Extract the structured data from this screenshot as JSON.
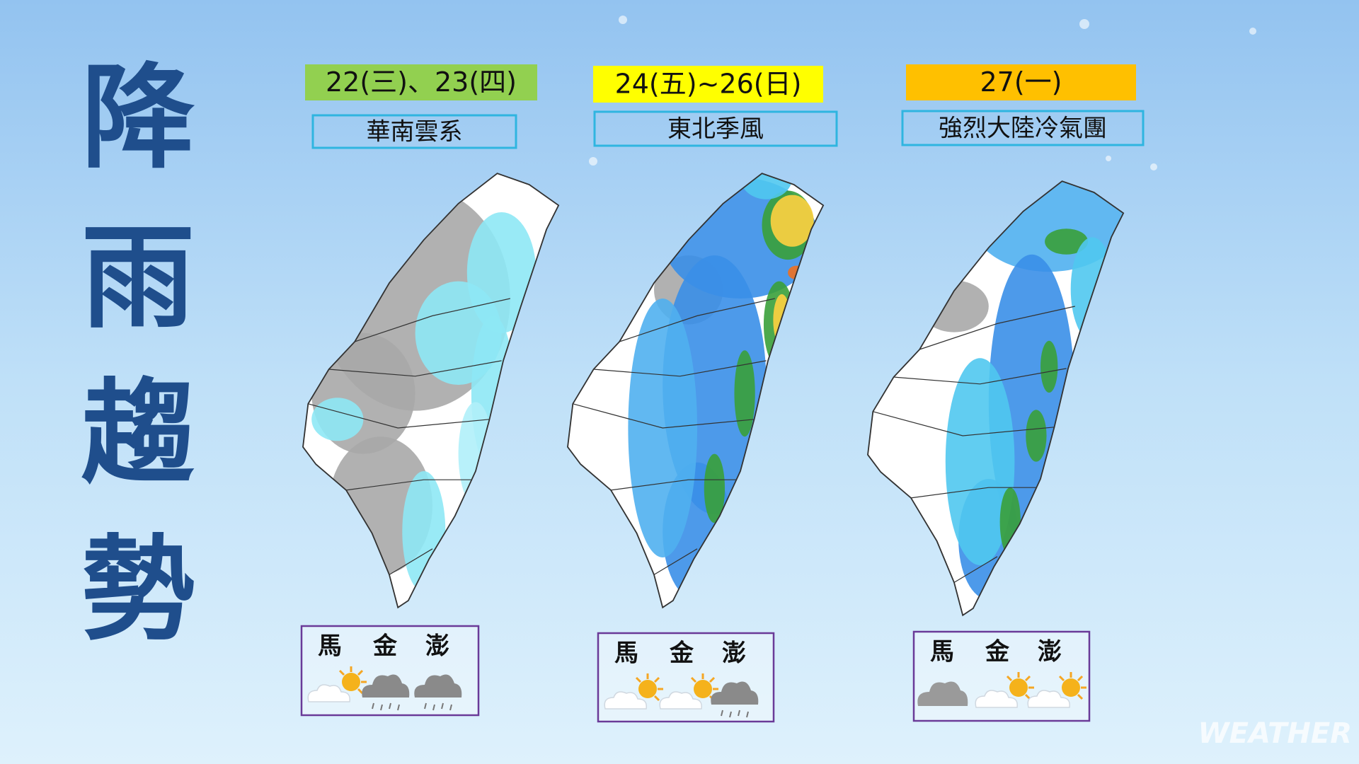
{
  "title": "降雨趨勢",
  "panels": [
    {
      "date": "22(三)、23(四)",
      "system": "華南雲系",
      "islands": [
        "馬",
        "金",
        "澎"
      ]
    },
    {
      "date": "24(五)~26(日)",
      "system": "東北季風",
      "islands": [
        "馬",
        "金",
        "澎"
      ]
    },
    {
      "date": "27(一)",
      "system": "強烈大陸冷氣團",
      "islands": [
        "馬",
        "金",
        "澎"
      ]
    }
  ],
  "watermark": "WEATHER"
}
